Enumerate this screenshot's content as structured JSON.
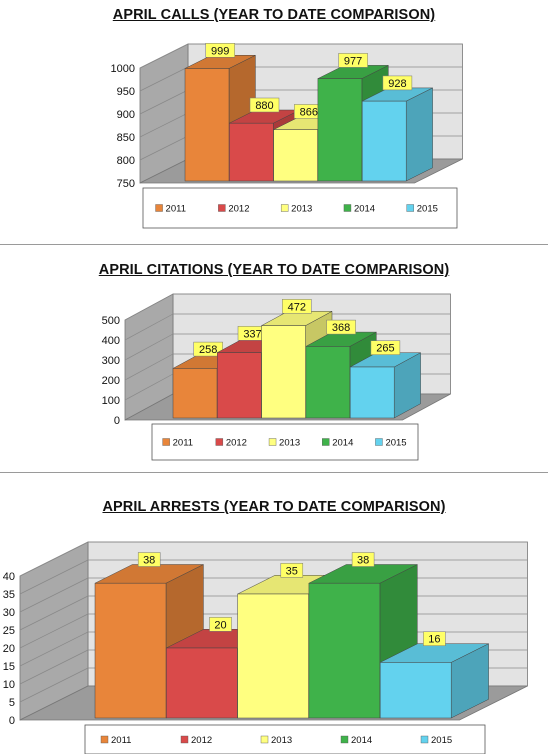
{
  "chart_data": [
    {
      "type": "bar",
      "title": "APRIL CALLS (YEAR TO DATE COMPARISON)",
      "categories": [
        "2011",
        "2012",
        "2013",
        "2014",
        "2015"
      ],
      "values": [
        999,
        880,
        866,
        977,
        928
      ],
      "ylim": [
        750,
        1000
      ],
      "yticks": [
        750,
        800,
        850,
        900,
        950,
        1000
      ],
      "legend_position": "bottom",
      "colors": [
        "#e8853a",
        "#d94a4a",
        "#ffff80",
        "#3fb24a",
        "#63d2ee"
      ]
    },
    {
      "type": "bar",
      "title": "APRIL CITATIONS (YEAR TO DATE COMPARISON)",
      "categories": [
        "2011",
        "2012",
        "2013",
        "2014",
        "2015"
      ],
      "values": [
        258,
        337,
        472,
        368,
        265
      ],
      "ylim": [
        0,
        500
      ],
      "yticks": [
        0,
        100,
        200,
        300,
        400,
        500
      ],
      "legend_position": "bottom",
      "colors": [
        "#e8853a",
        "#d94a4a",
        "#ffff80",
        "#3fb24a",
        "#63d2ee"
      ]
    },
    {
      "type": "bar",
      "title": "APRIL ARRESTS (YEAR TO DATE COMPARISON)",
      "categories": [
        "2011",
        "2012",
        "2013",
        "2014",
        "2015"
      ],
      "values": [
        38,
        20,
        35,
        38,
        16
      ],
      "ylim": [
        0,
        40
      ],
      "yticks": [
        0,
        5,
        10,
        15,
        20,
        25,
        30,
        35,
        40
      ],
      "legend_position": "bottom",
      "colors": [
        "#e8853a",
        "#d94a4a",
        "#ffff80",
        "#3fb24a",
        "#63d2ee"
      ]
    }
  ]
}
